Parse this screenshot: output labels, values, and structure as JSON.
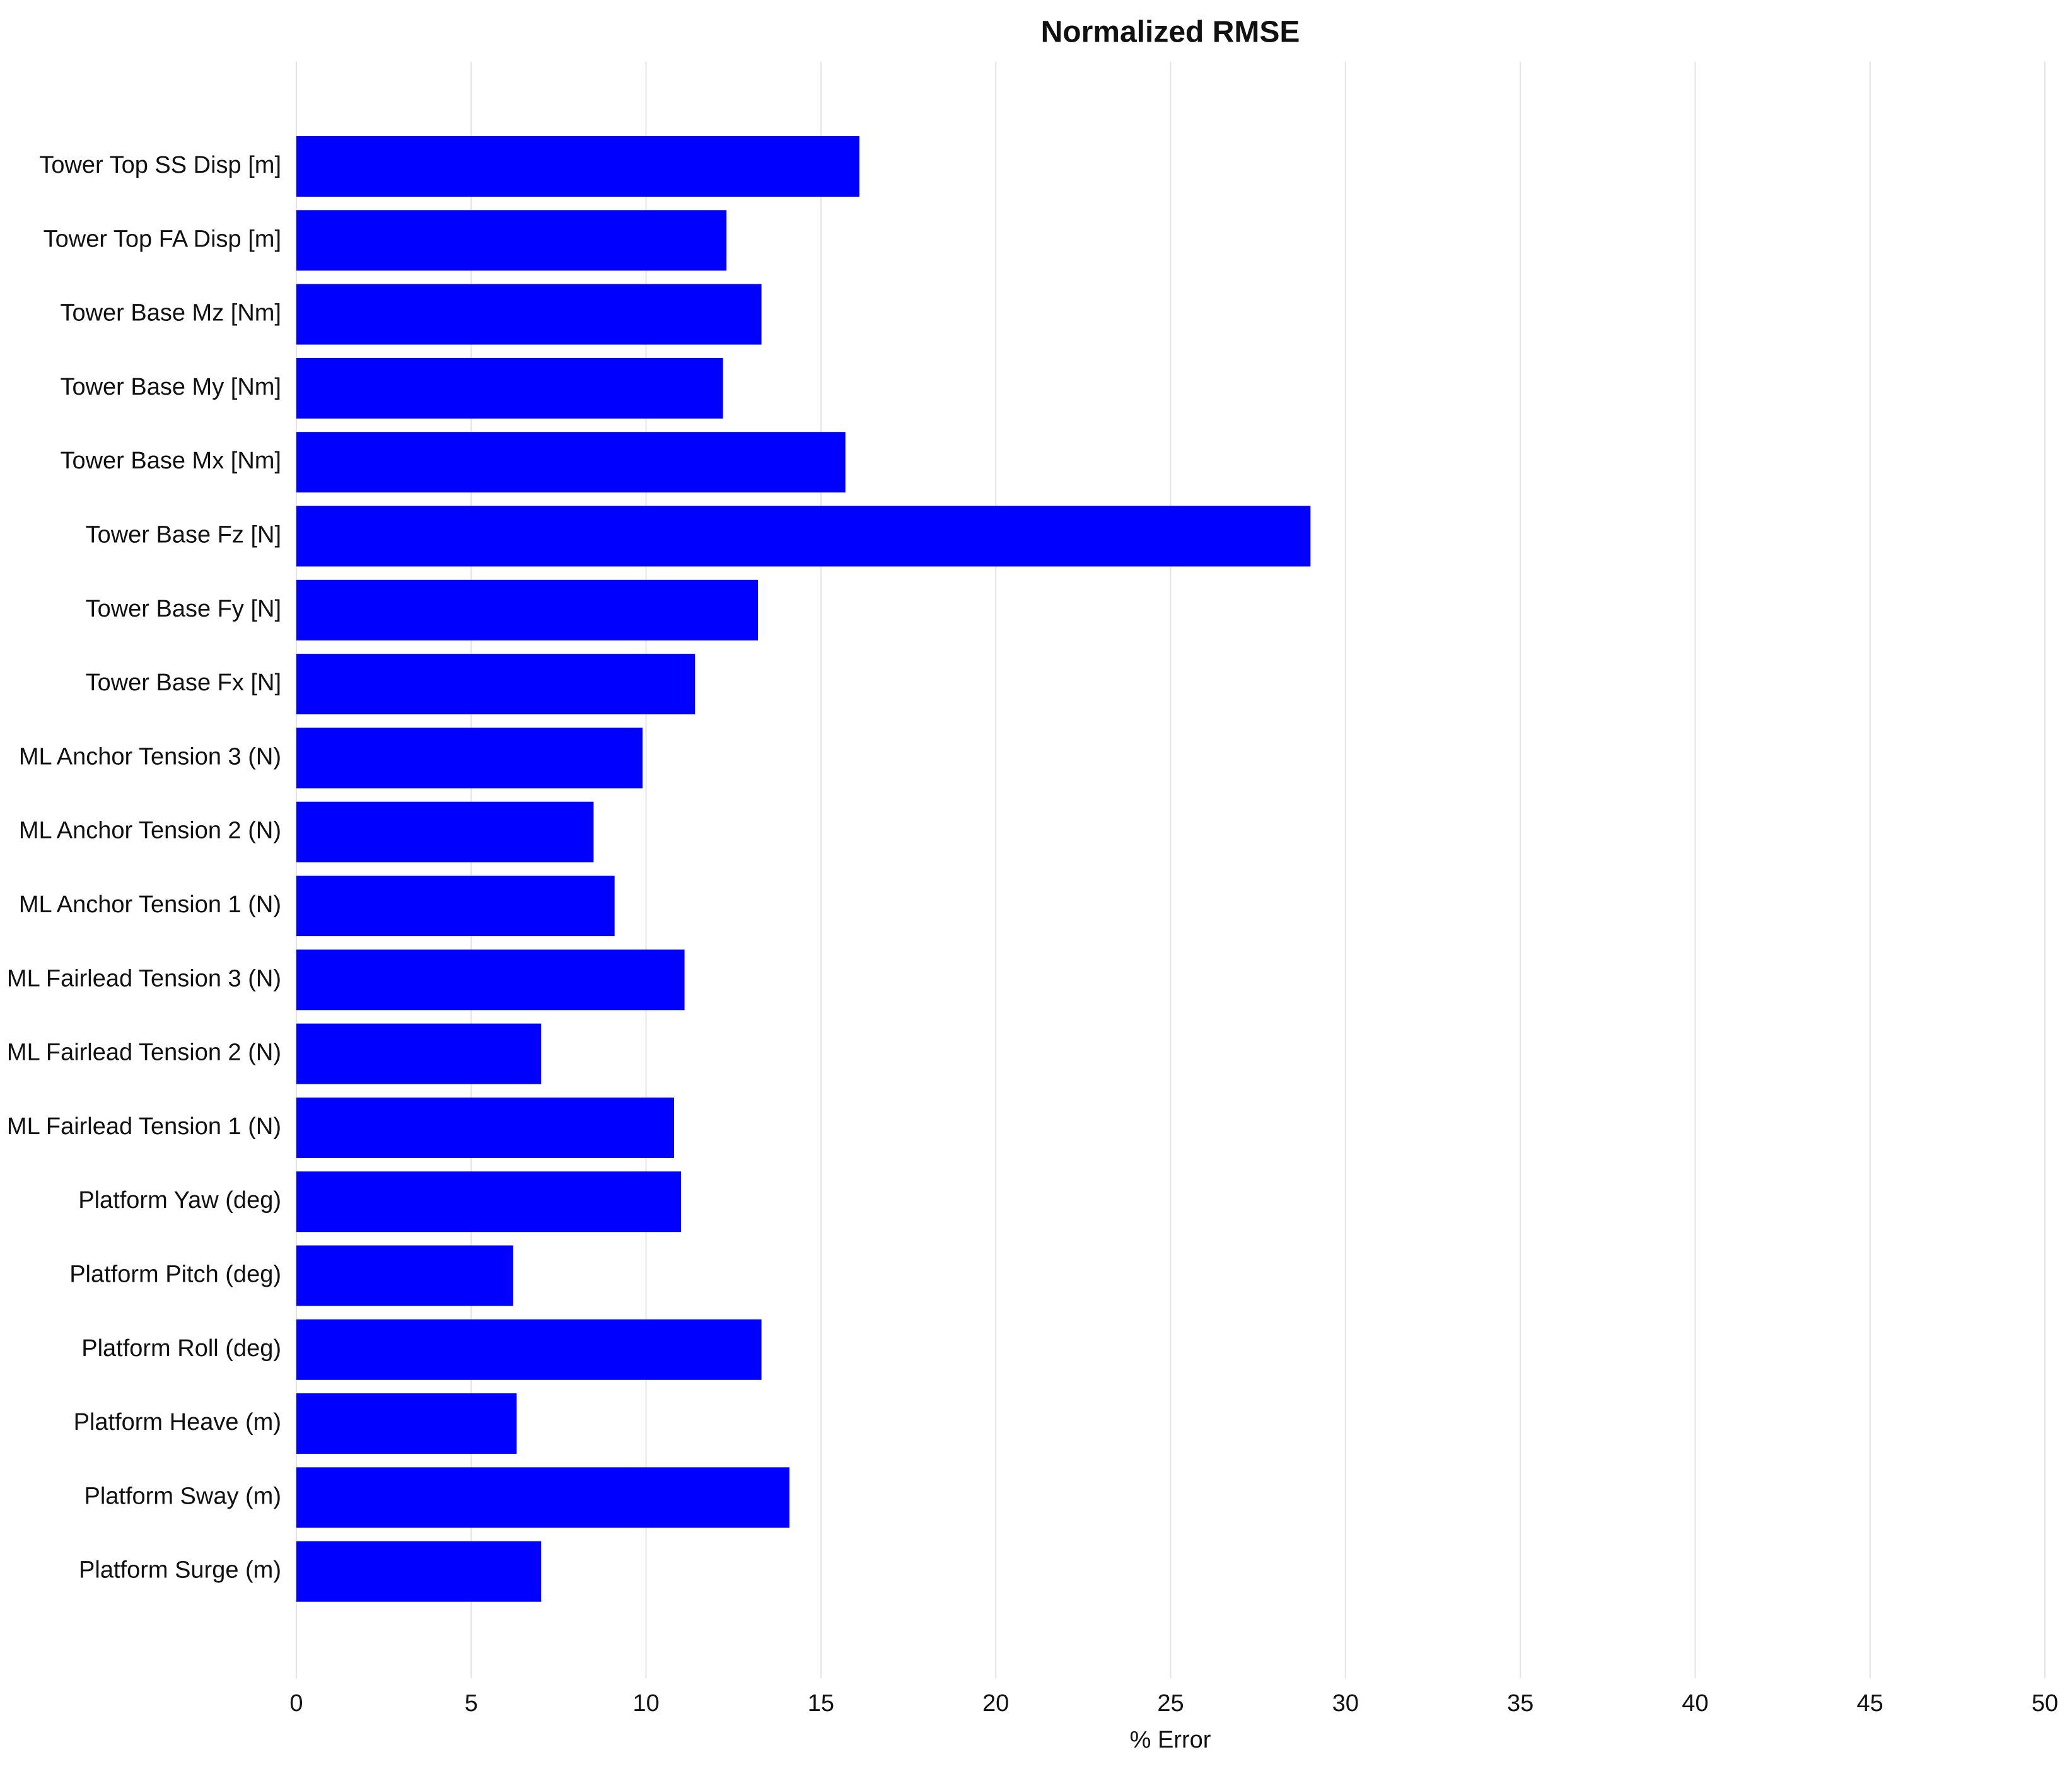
{
  "chart_data": {
    "type": "bar",
    "orientation": "horizontal",
    "title": "Normalized RMSE",
    "xlabel": "% Error",
    "categories": [
      "Tower Top SS Disp [m]",
      "Tower Top FA Disp [m]",
      "Tower Base Mz [Nm]",
      "Tower Base My [Nm]",
      "Tower Base Mx [Nm]",
      "Tower Base Fz [N]",
      "Tower Base Fy [N]",
      "Tower Base Fx [N]",
      "ML Anchor Tension 3 (N)",
      "ML Anchor Tension 2 (N)",
      "ML Anchor Tension 1 (N)",
      "ML Fairlead Tension 3 (N)",
      "ML Fairlead Tension 2 (N)",
      "ML Fairlead Tension 1 (N)",
      "Platform Yaw (deg)",
      "Platform Pitch (deg)",
      "Platform Roll (deg)",
      "Platform Heave (m)",
      "Platform Sway (m)",
      "Platform Surge (m)"
    ],
    "values": [
      16.1,
      12.3,
      13.3,
      12.2,
      15.7,
      29.0,
      13.2,
      11.4,
      9.9,
      8.5,
      9.1,
      11.1,
      7.0,
      10.8,
      11.0,
      6.2,
      13.3,
      6.3,
      14.1,
      7.0
    ],
    "color": "#0000ff",
    "xlim": [
      0,
      50
    ],
    "xticks": [
      0,
      5,
      10,
      15,
      20,
      25,
      30,
      35,
      40,
      45,
      50
    ],
    "grid": true
  }
}
